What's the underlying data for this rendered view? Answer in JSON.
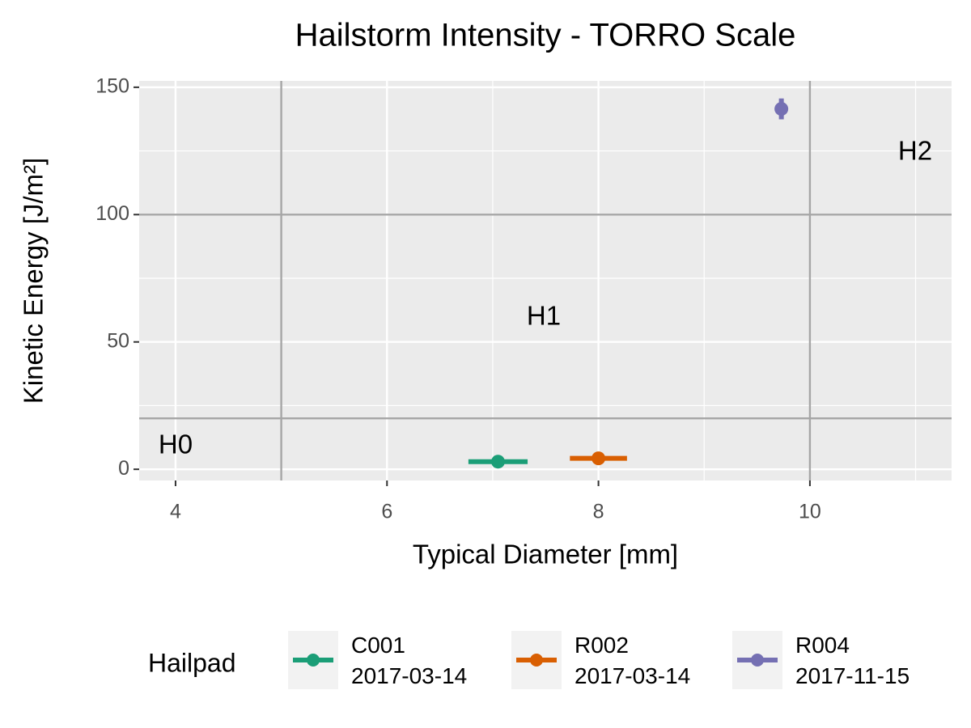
{
  "chart_data": {
    "type": "scatter",
    "title": "Hailstorm Intensity - TORRO Scale",
    "x_label": "Typical Diameter [mm]",
    "y_label": "Kinetic Energy [J/m²]",
    "xlim": [
      3.656,
      11.34
    ],
    "ylim": [
      -4.4,
      152.5
    ],
    "xticks": [
      4,
      6,
      8,
      10
    ],
    "yticks": [
      0,
      50,
      100,
      150
    ],
    "grid": true,
    "thresholds": {
      "x": [
        5,
        10
      ],
      "y": [
        20,
        100
      ]
    },
    "zones": [
      "H0",
      "H1",
      "H2"
    ],
    "legend_title": "Hailpad",
    "legend_position": "bottom",
    "series": [
      {
        "name": "C001\n2017-03-14",
        "color": "#1b9e77",
        "x": [
          7.05
        ],
        "y": [
          3
        ],
        "xerr": [
          0.28
        ],
        "yerr": [
          0.6
        ]
      },
      {
        "name": "R002\n2017-03-14",
        "color": "#d95f02",
        "x": [
          8.0
        ],
        "y": [
          4.3
        ],
        "xerr": [
          0.27
        ],
        "yerr": [
          0.8
        ]
      },
      {
        "name": "R004\n2017-11-15",
        "color": "#7570b3",
        "x": [
          9.73
        ],
        "y": [
          141.5
        ],
        "xerr": [
          0.05
        ],
        "yerr": [
          4.1
        ]
      }
    ]
  }
}
